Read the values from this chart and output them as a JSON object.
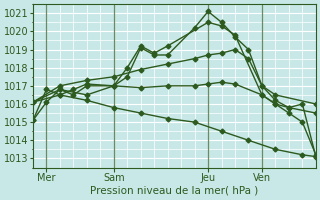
{
  "bg_color": "#c8e8e8",
  "grid_color": "#ffffff",
  "line_color": "#2d5a1e",
  "xlabel": "Pression niveau de la mer( hPa )",
  "yticks": [
    1013,
    1014,
    1015,
    1016,
    1017,
    1018,
    1019,
    1020,
    1021
  ],
  "ylim": [
    1012.5,
    1021.5
  ],
  "xlim": [
    0,
    10.5
  ],
  "xtick_positions": [
    0.5,
    3.0,
    6.5,
    8.5
  ],
  "xtick_labels": [
    "Mer",
    "Sam",
    "Jeu",
    "Ven"
  ],
  "vline_positions": [
    0.5,
    3.0,
    6.5,
    8.5
  ],
  "series": [
    {
      "x": [
        0.0,
        0.5,
        1.0,
        1.5,
        2.0,
        3.0,
        3.5,
        4.0,
        4.5,
        5.0,
        6.0,
        6.5,
        7.0,
        7.5,
        8.0,
        8.5,
        9.0,
        9.5,
        10.0,
        10.5
      ],
      "y": [
        1015.1,
        1016.1,
        1016.8,
        1016.5,
        1017.0,
        1017.0,
        1017.5,
        1019.1,
        1018.7,
        1018.7,
        1020.2,
        1021.1,
        1020.5,
        1019.7,
        1019.0,
        1017.0,
        1016.2,
        1015.8,
        1016.0,
        1013.1
      ]
    },
    {
      "x": [
        0.0,
        0.5,
        1.0,
        1.5,
        2.0,
        3.0,
        3.5,
        4.0,
        4.5,
        5.0,
        6.5,
        7.0,
        7.5,
        8.5,
        9.0,
        9.5,
        10.0,
        10.5
      ],
      "y": [
        1015.1,
        1016.8,
        1016.5,
        1016.8,
        1017.1,
        1017.0,
        1018.0,
        1019.2,
        1018.8,
        1019.2,
        1020.5,
        1020.3,
        1019.8,
        1016.5,
        1016.0,
        1015.5,
        1015.0,
        1013.2
      ]
    },
    {
      "x": [
        0.0,
        1.0,
        2.0,
        3.0,
        4.0,
        5.0,
        6.0,
        6.5,
        7.0,
        7.5,
        8.0,
        8.5,
        9.0,
        10.5
      ],
      "y": [
        1016.1,
        1017.0,
        1017.3,
        1017.5,
        1017.9,
        1018.2,
        1018.5,
        1018.7,
        1018.8,
        1019.0,
        1018.5,
        1017.0,
        1016.5,
        1016.0
      ]
    },
    {
      "x": [
        0.0,
        1.0,
        2.0,
        3.0,
        4.0,
        5.0,
        6.0,
        6.5,
        7.0,
        7.5,
        8.5,
        9.0,
        9.5,
        10.5
      ],
      "y": [
        1016.1,
        1016.8,
        1016.5,
        1017.0,
        1016.9,
        1017.0,
        1017.0,
        1017.1,
        1017.2,
        1017.1,
        1016.5,
        1016.0,
        1015.8,
        1015.5
      ]
    },
    {
      "x": [
        0.0,
        1.0,
        2.0,
        3.0,
        4.0,
        5.0,
        6.0,
        7.0,
        8.0,
        9.0,
        10.0,
        10.5
      ],
      "y": [
        1016.1,
        1016.5,
        1016.2,
        1015.8,
        1015.5,
        1015.2,
        1015.0,
        1014.5,
        1014.0,
        1013.5,
        1013.2,
        1013.1
      ]
    }
  ]
}
